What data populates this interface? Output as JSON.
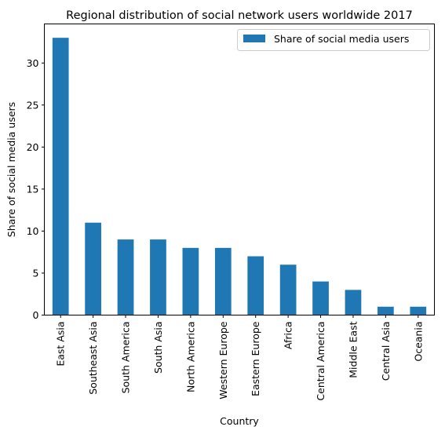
{
  "chart_data": {
    "type": "bar",
    "title": "Regional distribution of social network users worldwide 2017",
    "xlabel": "Country",
    "ylabel": "Share of social media users",
    "categories": [
      "East Asia",
      "Southeast Asia",
      "South America",
      "South Asia",
      "North America",
      "Western Europe",
      "Eastern Europe",
      "Africa",
      "Central America",
      "Middle East",
      "Central Asia",
      "Oceania"
    ],
    "series": [
      {
        "name": "Share of social media users",
        "values": [
          33,
          11,
          9,
          9,
          8,
          8,
          7,
          6,
          4,
          3,
          1,
          1
        ],
        "color": "#1f77b4"
      }
    ],
    "ylim": [
      0,
      34.65
    ],
    "yticks": [
      0,
      5,
      10,
      15,
      20,
      25,
      30
    ],
    "grid": false,
    "legend": "top-right"
  }
}
